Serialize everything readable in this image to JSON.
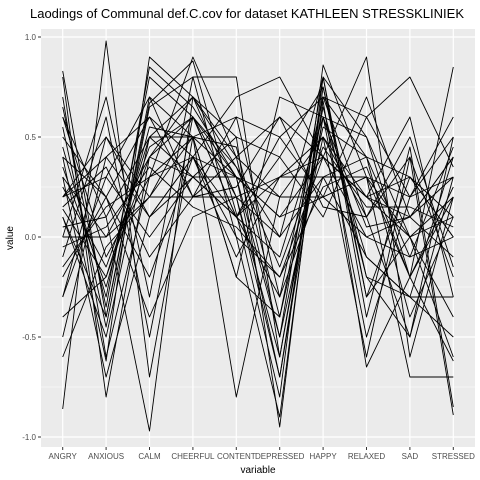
{
  "chart_data": {
    "type": "line",
    "title": "Laodings of Communal def.C.cov for dataset KATHLEEN STRESSKLINIEK",
    "xlabel": "variable",
    "ylabel": "value",
    "categories": [
      "ANGRY",
      "ANXIOUS",
      "CALM",
      "CHEERFUL",
      "CONTENT",
      "DEPRESSED",
      "HAPPY",
      "RELAXED",
      "SAD",
      "STRESSED"
    ],
    "ylim": [
      -1.05,
      1.04
    ],
    "yticks": [
      {
        "value": 1.0,
        "label": "1.0"
      },
      {
        "value": 0.5,
        "label": "0.5"
      },
      {
        "value": 0.0,
        "label": "0.0"
      },
      {
        "value": -0.5,
        "label": "-0.5"
      },
      {
        "value": -1.0,
        "label": "-1.0"
      }
    ],
    "grid": true,
    "legend": "none",
    "background": "#ebebeb",
    "gridColor": "#ffffff",
    "lineColor": "#000000",
    "series": [
      {
        "values": [
          0.83,
          -0.4,
          0.67,
          0.88,
          0.12,
          -0.8,
          0.86,
          0.3,
          -0.2,
          0.85
        ]
      },
      {
        "values": [
          -0.86,
          0.98,
          -0.7,
          0.5,
          -0.2,
          0.7,
          0.6,
          0.05,
          0.1,
          0.3
        ]
      },
      {
        "values": [
          0.4,
          -0.62,
          0.9,
          0.7,
          0.5,
          -0.95,
          0.8,
          -0.4,
          0.45,
          -0.85
        ]
      },
      {
        "values": [
          0.14,
          -0.2,
          0.5,
          0.3,
          0.1,
          -0.3,
          0.3,
          -0.1,
          -0.3,
          0.4
        ]
      },
      {
        "values": [
          0.6,
          0.1,
          -0.97,
          0.7,
          0.4,
          0.6,
          0.4,
          0.9,
          -0.6,
          0.2
        ]
      },
      {
        "values": [
          -0.3,
          0.5,
          0.2,
          0.5,
          -0.8,
          0.2,
          0.2,
          0.3,
          -0.7,
          -0.7
        ]
      },
      {
        "values": [
          0.2,
          0.3,
          0.7,
          0.2,
          0.6,
          0.5,
          0.7,
          0.6,
          0.8,
          0.35
        ]
      },
      {
        "values": [
          -0.6,
          -0.05,
          0.2,
          0.6,
          0.3,
          -0.7,
          0.68,
          -0.65,
          -0.2,
          -0.62
        ]
      },
      {
        "values": [
          0.8,
          -0.8,
          0.4,
          0.3,
          0.1,
          0.4,
          0.75,
          -0.3,
          0.3,
          0.1
        ]
      },
      {
        "values": [
          0.0,
          0.7,
          -0.3,
          0.8,
          0.8,
          -0.6,
          0.65,
          -0.2,
          -0.3,
          -0.3
        ]
      },
      {
        "values": [
          0.5,
          0.2,
          0.6,
          0.4,
          0.1,
          0.3,
          0.5,
          0.2,
          0.1,
          0.4
        ]
      },
      {
        "values": [
          -0.5,
          0.4,
          0.1,
          0.4,
          0.3,
          0.1,
          0.2,
          0.3,
          0.2,
          0.6
        ]
      },
      {
        "values": [
          0.1,
          -0.4,
          0.7,
          0.5,
          -0.2,
          -0.4,
          0.7,
          0.1,
          -0.5,
          0.5
        ]
      },
      {
        "values": [
          0.3,
          0.0,
          0.4,
          0.7,
          0.35,
          0.0,
          0.8,
          0.5,
          0.0,
          -0.4
        ]
      },
      {
        "values": [
          -0.2,
          0.2,
          -0.4,
          0.1,
          0.2,
          0.3,
          0.3,
          0.4,
          0.3,
          0.0
        ]
      },
      {
        "values": [
          0.7,
          -0.6,
          0.3,
          0.9,
          0.4,
          -0.5,
          0.5,
          -0.6,
          0.4,
          -0.89
        ]
      },
      {
        "values": [
          0.05,
          0.1,
          0.5,
          0.5,
          0.3,
          0.1,
          0.4,
          0.2,
          0.0,
          0.2
        ]
      },
      {
        "values": [
          0.45,
          -0.3,
          0.8,
          0.6,
          0.2,
          -0.6,
          0.6,
          -0.5,
          0.2,
          0.3
        ]
      },
      {
        "values": [
          -0.1,
          0.6,
          -0.5,
          0.6,
          0.1,
          0.5,
          0.2,
          0.7,
          0.1,
          0.4
        ]
      },
      {
        "values": [
          0.3,
          -0.7,
          0.1,
          0.4,
          0.0,
          -0.2,
          0.4,
          0.0,
          -0.1,
          0.0
        ]
      },
      {
        "values": [
          0.2,
          0.4,
          0.6,
          0.2,
          0.4,
          0.2,
          0.5,
          0.1,
          0.4,
          -0.2
        ]
      },
      {
        "values": [
          0.6,
          -0.1,
          0.3,
          0.5,
          0.6,
          -0.3,
          0.7,
          0.4,
          -0.4,
          0.1
        ]
      },
      {
        "values": [
          -0.3,
          0.3,
          0.0,
          0.3,
          0.5,
          0.4,
          0.1,
          0.6,
          0.2,
          0.5
        ]
      },
      {
        "values": [
          0.1,
          -0.5,
          0.5,
          0.7,
          0.2,
          -0.7,
          0.6,
          -0.1,
          -0.3,
          -0.5
        ]
      },
      {
        "values": [
          0.0,
          0.0,
          0.2,
          0.2,
          0.2,
          0.0,
          0.3,
          0.3,
          0.0,
          0.1
        ]
      },
      {
        "values": [
          0.4,
          0.2,
          -0.2,
          0.4,
          0.7,
          0.8,
          0.4,
          0.2,
          0.6,
          -0.3
        ]
      },
      {
        "values": [
          -0.4,
          -0.2,
          0.4,
          0.6,
          0.1,
          -0.1,
          0.6,
          0.5,
          -0.2,
          0.2
        ]
      },
      {
        "values": [
          0.2,
          0.5,
          0.1,
          0.3,
          0.3,
          0.2,
          0.2,
          0.0,
          0.1,
          -0.1
        ]
      },
      {
        "values": [
          0.55,
          -0.45,
          0.65,
          0.8,
          0.0,
          -0.9,
          0.75,
          -0.2,
          -0.5,
          0.3
        ]
      },
      {
        "values": [
          -0.15,
          0.15,
          0.3,
          0.4,
          -0.1,
          0.3,
          0.4,
          0.2,
          0.3,
          0.0
        ]
      },
      {
        "values": [
          0.35,
          -0.25,
          0.55,
          0.5,
          0.45,
          -0.4,
          0.55,
          0.4,
          -0.1,
          0.45
        ]
      },
      {
        "values": [
          0.15,
          0.35,
          -0.1,
          0.2,
          0.25,
          0.6,
          0.15,
          0.1,
          0.5,
          -0.15
        ]
      },
      {
        "values": [
          0.65,
          -0.35,
          0.85,
          0.65,
          0.3,
          -0.5,
          0.8,
          -0.3,
          0.0,
          -0.6
        ]
      },
      {
        "values": [
          -0.05,
          0.05,
          0.35,
          0.15,
          0.05,
          -0.2,
          0.25,
          0.35,
          -0.2,
          0.25
        ]
      },
      {
        "values": [
          0.25,
          -0.15,
          0.45,
          0.6,
          0.35,
          -0.15,
          0.45,
          0.15,
          0.15,
          0.05
        ]
      }
    ]
  }
}
